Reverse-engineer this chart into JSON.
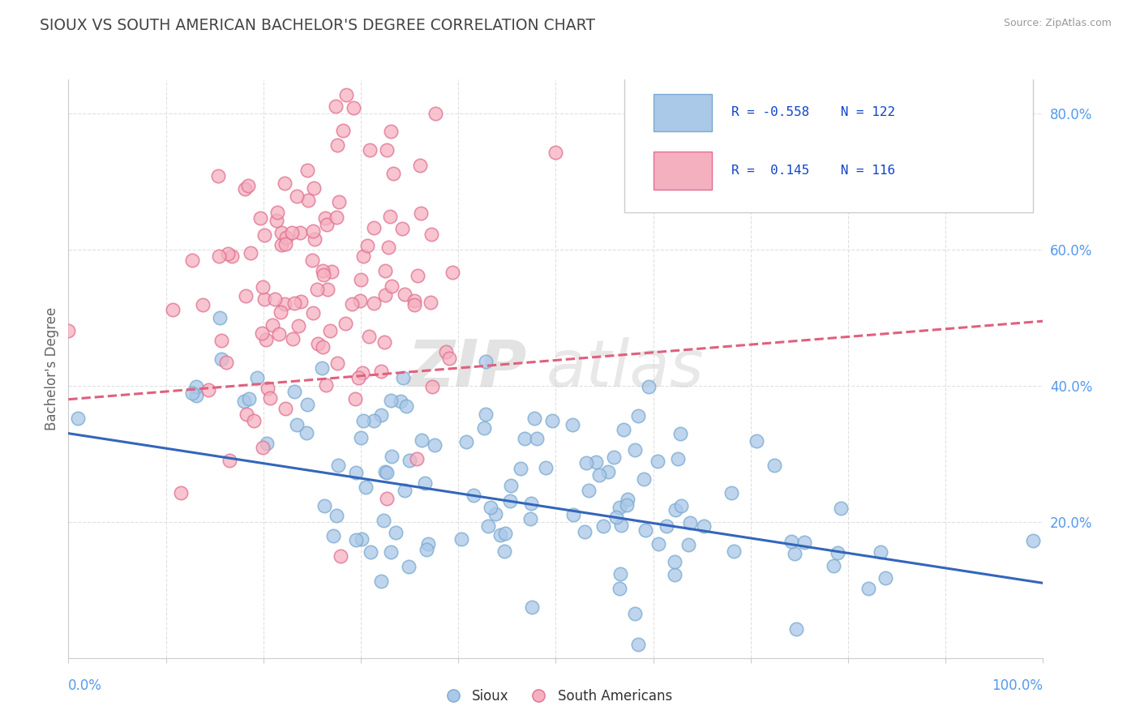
{
  "title": "SIOUX VS SOUTH AMERICAN BACHELOR'S DEGREE CORRELATION CHART",
  "source_text": "Source: ZipAtlas.com",
  "ylabel": "Bachelor's Degree",
  "watermark_zip": "ZIP",
  "watermark_atlas": "atlas",
  "sioux_color": "#aac8e8",
  "south_american_color": "#f5b0c0",
  "sioux_edge": "#7aaad0",
  "south_american_edge": "#e07090",
  "sioux_line_color": "#3366bb",
  "south_american_line_color": "#e06080",
  "r_sioux": -0.558,
  "n_sioux": 122,
  "r_south_american": 0.145,
  "n_south_american": 116,
  "x_min": 0.0,
  "x_max": 1.0,
  "y_min": 0.0,
  "y_max": 0.85,
  "sioux_intercept": 0.33,
  "sioux_slope": -0.22,
  "sa_intercept": 0.38,
  "sa_slope": 0.115,
  "background_color": "#ffffff",
  "grid_color": "#dddddd",
  "title_color": "#444444",
  "source_color": "#999999",
  "tick_label_color": "#5599ee",
  "legend_color": "#1144cc",
  "ytick_positions": [
    0.2,
    0.4,
    0.6,
    0.8
  ],
  "ytick_labels": [
    "20.0%",
    "40.0%",
    "60.0%",
    "80.0%"
  ]
}
